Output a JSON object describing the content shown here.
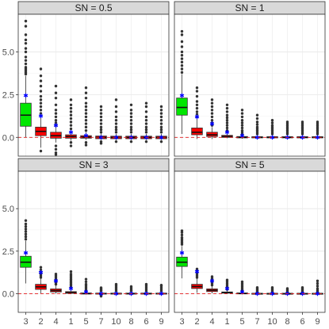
{
  "chart_data": {
    "type": "boxplot",
    "layout": "2x2 facets",
    "categories": [
      "3",
      "2",
      "4",
      "1",
      "5",
      "7",
      "10",
      "8",
      "6",
      "9"
    ],
    "yticks": [
      0.0,
      2.5,
      5.0
    ],
    "ytick_labels": [
      "0.0",
      "2.5",
      "5.0"
    ],
    "ylim": [
      -1.1,
      7.2
    ],
    "reference_line": {
      "y": 0,
      "color": "#e41a1c",
      "style": "dashed"
    },
    "box_fill_first": "#00e600",
    "box_fill_rest": "#ff0000",
    "mean_marker_color": "#0000ff",
    "grid": true,
    "panels": [
      {
        "label": "SN =  0.5",
        "boxes": [
          {
            "category": "3",
            "q1": 0.65,
            "median": 1.3,
            "q3": 2.0,
            "whisker_low": 0.0,
            "whisker_high": 3.6,
            "mean": 2.45,
            "outliers": [
              3.7,
              3.8,
              3.9,
              4.0,
              4.1,
              4.3,
              4.5,
              4.7,
              5.0,
              5.2,
              5.5,
              5.7,
              6.0,
              6.5,
              6.8
            ]
          },
          {
            "category": "2",
            "q1": 0.1,
            "median": 0.35,
            "q3": 0.6,
            "whisker_low": -0.6,
            "whisker_high": 1.3,
            "mean": 1.25,
            "outliers": [
              1.4,
              1.6,
              1.8,
              2.0,
              2.2,
              2.4,
              2.7,
              3.0,
              3.3,
              3.6,
              4.0,
              -0.8
            ]
          },
          {
            "category": "4",
            "q1": -0.05,
            "median": 0.1,
            "q3": 0.3,
            "whisker_low": -0.3,
            "whisker_high": 0.65,
            "mean": 0.7,
            "outliers": [
              0.7,
              0.85,
              1.0,
              1.2,
              1.4,
              1.6,
              1.9,
              2.3,
              2.6,
              3.0,
              -0.5,
              -0.7,
              -0.9,
              -1.0
            ]
          },
          {
            "category": "1",
            "q1": -0.05,
            "median": 0.05,
            "q3": 0.15,
            "whisker_low": -0.2,
            "whisker_high": 0.4,
            "mean": 0.3,
            "outliers": [
              0.5,
              0.7,
              0.9,
              1.1,
              1.3,
              1.5,
              1.7,
              1.9,
              2.2,
              -0.3,
              -0.5
            ]
          },
          {
            "category": "5",
            "q1": -0.05,
            "median": 0.02,
            "q3": 0.1,
            "whisker_low": -0.15,
            "whisker_high": 0.3,
            "mean": 0.1,
            "outliers": [
              0.4,
              0.6,
              0.8,
              1.0,
              1.2,
              1.4,
              1.6,
              1.8,
              2.0,
              2.3,
              2.6,
              2.9,
              -0.3,
              -0.45
            ]
          },
          {
            "category": "7",
            "q1": -0.08,
            "median": 0.0,
            "q3": 0.08,
            "whisker_low": -0.15,
            "whisker_high": 0.22,
            "mean": 0.0,
            "outliers": [
              0.3,
              0.45,
              0.6,
              0.8,
              1.0,
              1.2,
              1.4,
              1.6,
              1.8,
              -0.25,
              -0.35
            ]
          },
          {
            "category": "10",
            "q1": -0.08,
            "median": 0.0,
            "q3": 0.07,
            "whisker_low": -0.15,
            "whisker_high": 0.2,
            "mean": 0.0,
            "outliers": [
              0.3,
              0.45,
              0.6,
              0.8,
              1.0,
              1.2,
              1.5,
              1.8,
              2.2,
              -0.25
            ]
          },
          {
            "category": "8",
            "q1": -0.08,
            "median": 0.0,
            "q3": 0.07,
            "whisker_low": -0.15,
            "whisker_high": 0.2,
            "mean": 0.0,
            "outliers": [
              0.3,
              0.45,
              0.6,
              0.8,
              1.0,
              1.2,
              1.4,
              1.6,
              1.9,
              -0.25
            ]
          },
          {
            "category": "6",
            "q1": -0.08,
            "median": 0.0,
            "q3": 0.07,
            "whisker_low": -0.15,
            "whisker_high": 0.2,
            "mean": 0.0,
            "outliers": [
              0.3,
              0.45,
              0.6,
              0.8,
              1.0,
              1.2,
              1.5,
              1.8,
              2.0,
              -0.25
            ]
          },
          {
            "category": "9",
            "q1": -0.08,
            "median": 0.0,
            "q3": 0.07,
            "whisker_low": -0.15,
            "whisker_high": 0.2,
            "mean": 0.0,
            "outliers": [
              0.3,
              0.45,
              0.6,
              0.8,
              1.0,
              1.2,
              1.4,
              1.6,
              1.8,
              -0.25
            ]
          }
        ]
      },
      {
        "label": "SN =  1",
        "boxes": [
          {
            "category": "3",
            "q1": 1.3,
            "median": 1.75,
            "q3": 2.3,
            "whisker_low": 0.2,
            "whisker_high": 3.7,
            "mean": 2.45,
            "outliers": [
              3.8,
              4.0,
              4.2,
              4.4,
              4.6,
              4.8,
              5.0,
              5.3,
              5.6,
              6.0,
              6.2
            ]
          },
          {
            "category": "2",
            "q1": 0.15,
            "median": 0.3,
            "q3": 0.55,
            "whisker_low": -0.1,
            "whisker_high": 1.1,
            "mean": 1.2,
            "outliers": [
              1.2,
              1.35,
              1.5,
              1.7,
              1.9,
              2.1,
              2.4,
              2.7,
              2.9
            ]
          },
          {
            "category": "4",
            "q1": 0.05,
            "median": 0.15,
            "q3": 0.3,
            "whisker_low": -0.1,
            "whisker_high": 0.6,
            "mean": 0.8,
            "outliers": [
              0.7,
              0.85,
              1.0,
              1.2,
              1.4,
              1.6,
              1.8,
              2.0,
              2.2
            ]
          },
          {
            "category": "1",
            "q1": 0.0,
            "median": 0.05,
            "q3": 0.12,
            "whisker_low": -0.05,
            "whisker_high": 0.3,
            "mean": 0.3,
            "outliers": [
              0.4,
              0.55,
              0.7,
              0.85,
              1.0,
              1.15,
              1.3,
              1.5,
              1.7,
              1.9
            ]
          },
          {
            "category": "5",
            "q1": -0.03,
            "median": 0.0,
            "q3": 0.05,
            "whisker_low": -0.08,
            "whisker_high": 0.15,
            "mean": 0.1,
            "outliers": [
              0.2,
              0.3,
              0.4,
              0.55,
              0.7,
              0.85,
              1.0,
              1.2,
              1.4,
              1.6
            ]
          },
          {
            "category": "7",
            "q1": -0.03,
            "median": 0.0,
            "q3": 0.04,
            "whisker_low": -0.08,
            "whisker_high": 0.12,
            "mean": 0.0,
            "outliers": [
              0.2,
              0.3,
              0.4,
              0.5,
              0.6,
              0.75,
              0.9,
              1.1,
              1.3
            ]
          },
          {
            "category": "10",
            "q1": -0.03,
            "median": 0.0,
            "q3": 0.04,
            "whisker_low": -0.08,
            "whisker_high": 0.12,
            "mean": 0.0,
            "outliers": [
              0.2,
              0.3,
              0.4,
              0.5,
              0.6,
              0.7,
              0.85,
              1.0
            ]
          },
          {
            "category": "8",
            "q1": -0.03,
            "median": 0.0,
            "q3": 0.04,
            "whisker_low": -0.08,
            "whisker_high": 0.12,
            "mean": 0.0,
            "outliers": [
              0.2,
              0.3,
              0.4,
              0.5,
              0.6,
              0.7,
              0.8,
              0.9
            ]
          },
          {
            "category": "6",
            "q1": -0.03,
            "median": 0.0,
            "q3": 0.04,
            "whisker_low": -0.08,
            "whisker_high": 0.12,
            "mean": 0.0,
            "outliers": [
              0.2,
              0.3,
              0.4,
              0.5,
              0.6,
              0.7,
              0.8,
              0.9
            ]
          },
          {
            "category": "9",
            "q1": -0.03,
            "median": 0.0,
            "q3": 0.04,
            "whisker_low": -0.08,
            "whisker_high": 0.12,
            "mean": 0.0,
            "outliers": [
              0.2,
              0.3,
              0.4,
              0.5,
              0.6,
              0.7,
              0.8,
              0.9
            ]
          }
        ]
      },
      {
        "label": "SN =  3",
        "boxes": [
          {
            "category": "3",
            "q1": 1.55,
            "median": 1.85,
            "q3": 2.2,
            "whisker_low": 0.6,
            "whisker_high": 3.1,
            "mean": 2.4,
            "outliers": [
              3.2,
              3.35,
              3.5,
              3.65,
              3.8,
              3.95,
              4.1,
              4.3
            ]
          },
          {
            "category": "2",
            "q1": 0.25,
            "median": 0.4,
            "q3": 0.55,
            "whisker_low": 0.0,
            "whisker_high": 0.9,
            "mean": 1.25,
            "outliers": [
              0.95,
              1.05,
              1.15,
              1.25,
              1.4,
              1.55
            ]
          },
          {
            "category": "4",
            "q1": 0.1,
            "median": 0.18,
            "q3": 0.28,
            "whisker_low": 0.0,
            "whisker_high": 0.5,
            "mean": 0.75,
            "outliers": [
              0.55,
              0.65,
              0.75,
              0.85,
              0.95,
              1.05,
              1.15
            ]
          },
          {
            "category": "1",
            "q1": 0.02,
            "median": 0.06,
            "q3": 0.12,
            "whisker_low": -0.02,
            "whisker_high": 0.28,
            "mean": 0.3,
            "outliers": [
              0.35,
              0.45,
              0.55,
              0.65,
              0.75,
              0.85,
              0.95,
              1.05,
              1.15,
              1.3
            ]
          },
          {
            "category": "5",
            "q1": -0.02,
            "median": 0.0,
            "q3": 0.04,
            "whisker_low": -0.05,
            "whisker_high": 0.12,
            "mean": 0.1,
            "outliers": [
              0.15,
              0.25,
              0.35,
              0.45,
              0.55,
              0.7,
              0.85
            ]
          },
          {
            "category": "7",
            "q1": -0.02,
            "median": 0.0,
            "q3": 0.03,
            "whisker_low": -0.05,
            "whisker_high": 0.1,
            "mean": 0.0,
            "outliers": [
              0.15,
              0.2,
              0.25,
              0.3,
              0.35,
              -0.1,
              -0.15
            ]
          },
          {
            "category": "10",
            "q1": -0.02,
            "median": 0.0,
            "q3": 0.03,
            "whisker_low": -0.05,
            "whisker_high": 0.1,
            "mean": 0.0,
            "outliers": [
              0.15,
              0.25,
              0.35,
              0.45,
              0.55
            ]
          },
          {
            "category": "8",
            "q1": -0.02,
            "median": 0.0,
            "q3": 0.03,
            "whisker_low": -0.05,
            "whisker_high": 0.1,
            "mean": 0.0,
            "outliers": [
              0.15,
              0.2,
              0.28,
              0.35,
              0.42
            ]
          },
          {
            "category": "6",
            "q1": -0.02,
            "median": 0.0,
            "q3": 0.03,
            "whisker_low": -0.05,
            "whisker_high": 0.1,
            "mean": 0.0,
            "outliers": [
              0.15,
              0.25,
              0.35,
              0.45,
              0.55
            ]
          },
          {
            "category": "9",
            "q1": -0.02,
            "median": 0.0,
            "q3": 0.03,
            "whisker_low": -0.05,
            "whisker_high": 0.1,
            "mean": 0.0,
            "outliers": [
              0.15,
              0.25,
              0.35,
              0.45,
              0.5
            ]
          }
        ]
      },
      {
        "label": "SN =  5",
        "boxes": [
          {
            "category": "3",
            "q1": 1.6,
            "median": 1.85,
            "q3": 2.15,
            "whisker_low": 0.9,
            "whisker_high": 2.8,
            "mean": 2.4,
            "outliers": [
              2.9,
              3.0,
              3.1,
              3.2,
              3.3,
              3.45,
              3.6,
              3.7
            ]
          },
          {
            "category": "2",
            "q1": 0.3,
            "median": 0.42,
            "q3": 0.55,
            "whisker_low": 0.05,
            "whisker_high": 0.9,
            "mean": 1.3,
            "outliers": [
              0.95,
              1.05,
              1.15,
              1.25,
              1.35,
              1.45
            ]
          },
          {
            "category": "4",
            "q1": 0.12,
            "median": 0.2,
            "q3": 0.28,
            "whisker_low": 0.02,
            "whisker_high": 0.45,
            "mean": 0.75,
            "outliers": [
              0.5,
              0.6,
              0.7,
              0.8,
              0.9,
              1.0
            ]
          },
          {
            "category": "1",
            "q1": 0.03,
            "median": 0.06,
            "q3": 0.1,
            "whisker_low": 0.0,
            "whisker_high": 0.2,
            "mean": 0.3,
            "outliers": [
              0.25,
              0.3,
              0.4,
              0.5,
              0.6,
              0.7,
              0.8
            ]
          },
          {
            "category": "5",
            "q1": -0.01,
            "median": 0.01,
            "q3": 0.04,
            "whisker_low": -0.04,
            "whisker_high": 0.1,
            "mean": 0.1,
            "outliers": [
              0.15,
              0.22,
              0.3,
              0.4,
              0.5,
              0.6,
              0.7
            ]
          },
          {
            "category": "7",
            "q1": -0.01,
            "median": 0.0,
            "q3": 0.02,
            "whisker_low": -0.04,
            "whisker_high": 0.07,
            "mean": 0.0,
            "outliers": [
              0.12,
              0.18,
              0.24,
              0.3,
              0.36
            ]
          },
          {
            "category": "10",
            "q1": -0.01,
            "median": 0.0,
            "q3": 0.02,
            "whisker_low": -0.04,
            "whisker_high": 0.07,
            "mean": 0.0,
            "outliers": [
              0.12,
              0.18,
              0.24,
              0.3,
              0.36
            ]
          },
          {
            "category": "8",
            "q1": -0.01,
            "median": 0.0,
            "q3": 0.02,
            "whisker_low": -0.04,
            "whisker_high": 0.07,
            "mean": 0.0,
            "outliers": [
              0.12,
              0.18,
              0.24,
              0.3
            ]
          },
          {
            "category": "6",
            "q1": -0.01,
            "median": 0.0,
            "q3": 0.02,
            "whisker_low": -0.04,
            "whisker_high": 0.07,
            "mean": 0.0,
            "outliers": [
              0.12,
              0.18,
              0.24,
              0.3,
              0.36
            ]
          },
          {
            "category": "9",
            "q1": -0.01,
            "median": 0.0,
            "q3": 0.02,
            "whisker_low": -0.04,
            "whisker_high": 0.07,
            "mean": 0.0,
            "outliers": [
              0.12,
              0.2,
              0.3,
              0.45,
              0.6,
              0.75
            ]
          }
        ]
      }
    ]
  }
}
